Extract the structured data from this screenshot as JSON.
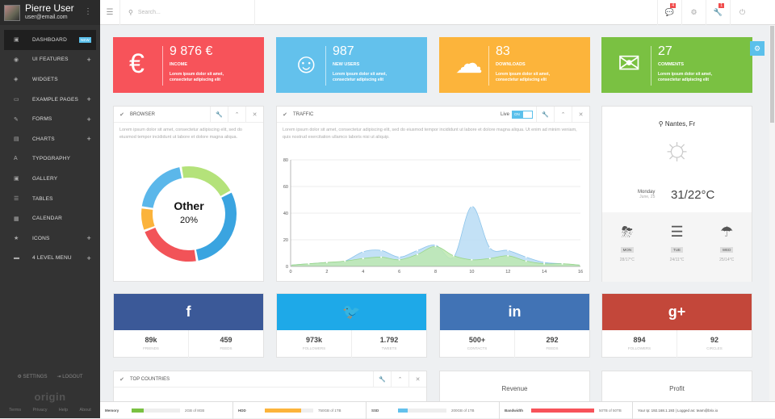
{
  "user": {
    "name": "Pierre User",
    "email": "user@email.com"
  },
  "nav": [
    {
      "icon": "▣",
      "label": "DASHBOARD",
      "badge": "NEW",
      "plus": "",
      "active": true
    },
    {
      "icon": "◉",
      "label": "UI FEATURES",
      "badge": "",
      "plus": "+",
      "active": false
    },
    {
      "icon": "◈",
      "label": "WIDGETS",
      "badge": "",
      "plus": "",
      "active": false
    },
    {
      "icon": "▭",
      "label": "EXAMPLE PAGES",
      "badge": "",
      "plus": "+",
      "active": false
    },
    {
      "icon": "✎",
      "label": "FORMS",
      "badge": "",
      "plus": "+",
      "active": false
    },
    {
      "icon": "▤",
      "label": "CHARTS",
      "badge": "",
      "plus": "+",
      "active": false
    },
    {
      "icon": "A",
      "label": "TYPOGRAPHY",
      "badge": "",
      "plus": "",
      "active": false
    },
    {
      "icon": "▣",
      "label": "GALLERY",
      "badge": "",
      "plus": "",
      "active": false
    },
    {
      "icon": "☰",
      "label": "TABLES",
      "badge": "",
      "plus": "",
      "active": false
    },
    {
      "icon": "▦",
      "label": "CALENDAR",
      "badge": "",
      "plus": "",
      "active": false
    },
    {
      "icon": "★",
      "label": "ICONS",
      "badge": "",
      "plus": "+",
      "active": false
    },
    {
      "icon": "▬",
      "label": "4 LEVEL MENU",
      "badge": "",
      "plus": "+",
      "active": false
    }
  ],
  "sidebar_footer": {
    "settings": "SETTINGS",
    "logout": "LOGOUT",
    "logo": "origin",
    "links": [
      "Terms",
      "Privacy",
      "Help",
      "About"
    ]
  },
  "topbar": {
    "search_placeholder": "Search...",
    "badge_messages": "4",
    "badge_tools": "1"
  },
  "stats": [
    {
      "icon": "€",
      "value": "9 876 €",
      "label": "INCOME",
      "desc1": "Lorem ipsum dolor sit amet,",
      "desc2": "consectetur adipiscing elit",
      "color": "#f7535a"
    },
    {
      "icon": "☺",
      "value": "987",
      "label": "NEW USERS",
      "desc1": "Lorem ipsum dolor sit amet,",
      "desc2": "consectetur adipiscing elit",
      "color": "#63c1ec"
    },
    {
      "icon": "☁",
      "value": "83",
      "label": "DOWNLOADS",
      "desc1": "Lorem ipsum dolor sit amet,",
      "desc2": "consectetur adipiscing elit",
      "color": "#fcb43b"
    },
    {
      "icon": "✉",
      "value": "27",
      "label": "COMMENTS",
      "desc1": "Lorem ipsum dolor sit amet,",
      "desc2": "consectetur adipiscing elit",
      "color": "#7ac142"
    }
  ],
  "browser": {
    "title": "BROWSER",
    "text": "Lorem ipsum dolor sit amet, consectetur adipiscing elit, sed do eiusmod tempor incididunt ut labore et dolore magna aliqua.",
    "center_label": "Other",
    "center_value": "20%",
    "slices": [
      {
        "value": 20,
        "color": "#b4e27a"
      },
      {
        "value": 30,
        "color": "#3aa4e0"
      },
      {
        "value": 22,
        "color": "#f25358"
      },
      {
        "value": 8,
        "color": "#fbb33b"
      },
      {
        "value": 20,
        "color": "#5bb7ea"
      }
    ]
  },
  "traffic": {
    "title": "TRAFFIC",
    "live_label": "Live",
    "toggle": "ON",
    "text": "Lorem ipsum dolor sit amet, consectetur adipiscing elit, sed do eiusmod tempor incididunt ut labore et dolore magna aliqua. Ut enim ad minim veniam, quis nostrud exercitation ullamco laboris nisi ut aliquip."
  },
  "weather": {
    "location": "Nantes, Fr",
    "day": "Monday",
    "date": "June, 25",
    "temp": "31/22°C",
    "forecast": [
      {
        "day": "MON",
        "temp": "28/17°C"
      },
      {
        "day": "TUE",
        "temp": "24/11°C"
      },
      {
        "day": "WED",
        "temp": "25/14°C"
      }
    ]
  },
  "social": [
    {
      "icon": "f",
      "color": "#3b5998",
      "a_num": "89k",
      "a_cap": "FRIENDS",
      "b_num": "459",
      "b_cap": "FEEDS"
    },
    {
      "icon": "🐦",
      "color": "#1ea9e8",
      "a_num": "973k",
      "a_cap": "FOLLOWERS",
      "b_num": "1.792",
      "b_cap": "TWEETS"
    },
    {
      "icon": "in",
      "color": "#4173b5",
      "a_num": "500+",
      "a_cap": "CONTACTS",
      "b_num": "292",
      "b_cap": "FEEDS"
    },
    {
      "icon": "g+",
      "color": "#c3473a",
      "a_num": "894",
      "a_cap": "FOLLOWERS",
      "b_num": "92",
      "b_cap": "CIRCLES"
    }
  ],
  "top_countries": {
    "title": "TOP COUNTRIES"
  },
  "mini": {
    "revenue": "Revenue",
    "profit": "Profit"
  },
  "footer": {
    "memory": {
      "label": "Memory",
      "value": "2GB of 8GB",
      "fill": 0.25,
      "color": "#7ac142"
    },
    "hdd": {
      "label": "HDD",
      "value": "750GB of 1TB",
      "fill": 0.75,
      "color": "#fcb43b"
    },
    "ssd": {
      "label": "SSD",
      "value": "200GB of 1TB",
      "fill": 0.2,
      "color": "#63c1ec"
    },
    "bandwidth": {
      "label": "Bandwidth",
      "value": "50TB of 50TB",
      "fill": 1,
      "color": "#f7535a"
    },
    "ip": "Your Ip: 192.168.1.193 | Logged as: team@brix.io"
  },
  "chart_data": {
    "type": "area",
    "x": [
      0,
      1,
      2,
      3,
      4,
      5,
      6,
      7,
      8,
      9,
      10,
      11,
      12,
      13,
      14,
      15,
      16
    ],
    "series": [
      {
        "values": [
          1,
          2,
          3,
          4,
          11,
          12,
          7,
          12,
          16,
          7,
          45,
          14,
          12,
          7,
          3,
          2,
          1
        ],
        "color": "#b8dcf4"
      },
      {
        "values": [
          1,
          2,
          3,
          4,
          6,
          7,
          5,
          9,
          15,
          8,
          5,
          6,
          8,
          4,
          2,
          2,
          1
        ],
        "color": "#bde7b0"
      }
    ],
    "xticks": [
      0,
      2,
      4,
      6,
      8,
      10,
      12,
      14,
      16
    ],
    "yticks": [
      0,
      20,
      40,
      60,
      80
    ],
    "ylim": [
      0,
      80
    ],
    "grid": true
  }
}
